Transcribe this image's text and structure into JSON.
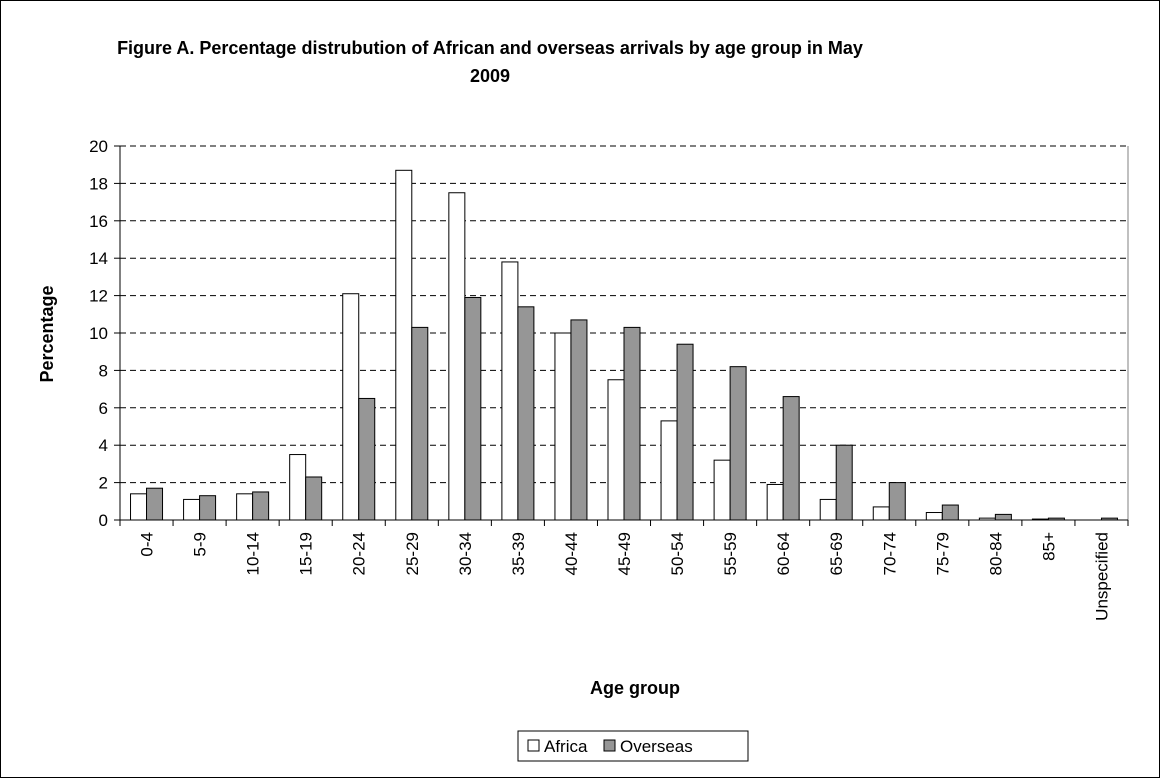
{
  "chart_data": {
    "type": "bar",
    "title": "Figure A. Percentage distrubution of African and overseas arrivals by age group in May 2009",
    "title_lines": [
      "Figure A. Percentage distrubution of African and overseas arrivals by age group in May",
      "2009"
    ],
    "xlabel": "Age group",
    "ylabel": "Percentage",
    "ylim": [
      0,
      20
    ],
    "yticks": [
      "0",
      "2",
      "4",
      "6",
      "8",
      "10",
      "12",
      "14",
      "16",
      "18",
      "20"
    ],
    "grid": "horizontal-dashed",
    "legend_position": "bottom",
    "categories": [
      "0-4",
      "5-9",
      "10-14",
      "15-19",
      "20-24",
      "25-29",
      "30-34",
      "35-39",
      "40-44",
      "45-49",
      "50-54",
      "55-59",
      "60-64",
      "65-69",
      "70-74",
      "75-79",
      "80-84",
      "85+",
      "Unspecified"
    ],
    "series": [
      {
        "name": "Africa",
        "color": "#ffffff",
        "values": [
          1.4,
          1.1,
          1.4,
          3.5,
          12.1,
          18.7,
          17.5,
          13.8,
          10.0,
          7.5,
          5.3,
          3.2,
          1.9,
          1.1,
          0.7,
          0.4,
          0.1,
          0.05,
          0.0
        ]
      },
      {
        "name": "Overseas",
        "color": "#969696",
        "values": [
          1.7,
          1.3,
          1.5,
          2.3,
          6.5,
          10.3,
          11.9,
          11.4,
          10.7,
          10.3,
          9.4,
          8.2,
          6.6,
          4.0,
          2.0,
          0.8,
          0.3,
          0.1,
          0.1
        ]
      }
    ]
  }
}
